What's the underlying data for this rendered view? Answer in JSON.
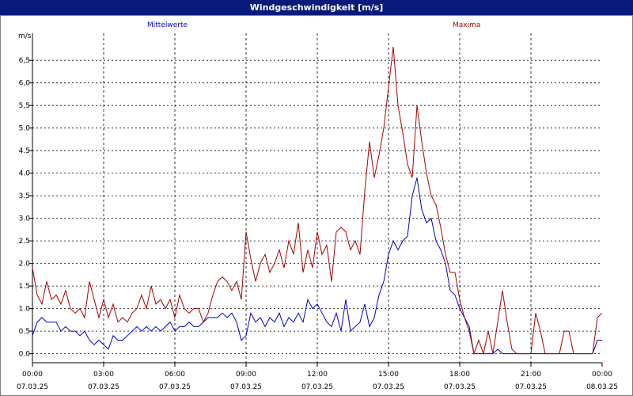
{
  "window": {
    "title": "Windgeschwindigkeit [m/s]"
  },
  "chart_data": {
    "type": "line",
    "title": "Windgeschwindigkeit [m/s]",
    "ylabel": "m/s",
    "ylim": [
      -0.2,
      7.1
    ],
    "y_ticks": [
      {
        "value": 0.0,
        "label": "0.0"
      },
      {
        "value": 0.5,
        "label": "0.5"
      },
      {
        "value": 1.0,
        "label": "1.0"
      },
      {
        "value": 1.5,
        "label": "1.5"
      },
      {
        "value": 2.0,
        "label": "2.0"
      },
      {
        "value": 2.5,
        "label": "2.5"
      },
      {
        "value": 3.0,
        "label": "3.0"
      },
      {
        "value": 3.5,
        "label": "3.5"
      },
      {
        "value": 4.0,
        "label": "4.0"
      },
      {
        "value": 4.5,
        "label": "4.5"
      },
      {
        "value": 5.0,
        "label": "5.0"
      },
      {
        "value": 5.5,
        "label": "5,5"
      },
      {
        "value": 6.0,
        "label": "6,0"
      },
      {
        "value": 6.5,
        "label": "6,5"
      }
    ],
    "x_range_hours": [
      0,
      24
    ],
    "x_ticks": [
      {
        "hour": 0,
        "time": "00:00",
        "date": "07.03.25"
      },
      {
        "hour": 3,
        "time": "03:00",
        "date": "07.03.25"
      },
      {
        "hour": 6,
        "time": "06:00",
        "date": "07.03.25"
      },
      {
        "hour": 9,
        "time": "09:00",
        "date": "07.03.25"
      },
      {
        "hour": 12,
        "time": "12:00",
        "date": "07.03.25"
      },
      {
        "hour": 15,
        "time": "15:00",
        "date": "07.03.25"
      },
      {
        "hour": 18,
        "time": "18:00",
        "date": "07.03.25"
      },
      {
        "hour": 21,
        "time": "21:00",
        "date": "07.03.25"
      },
      {
        "hour": 24,
        "time": "00:00",
        "date": "08.03.25"
      }
    ],
    "grid": true,
    "legend": [
      {
        "label": "Mittelwerte",
        "color": "#0000cc",
        "position": "top-left"
      },
      {
        "label": "Maxima",
        "color": "#aa0000",
        "position": "top-right"
      }
    ],
    "series": [
      {
        "name": "Mittelwerte",
        "color": "#0000cc",
        "points": [
          [
            0.0,
            0.4
          ],
          [
            0.2,
            0.7
          ],
          [
            0.4,
            0.8
          ],
          [
            0.6,
            0.7
          ],
          [
            0.8,
            0.7
          ],
          [
            1.0,
            0.7
          ],
          [
            1.2,
            0.5
          ],
          [
            1.4,
            0.6
          ],
          [
            1.6,
            0.5
          ],
          [
            1.8,
            0.5
          ],
          [
            2.0,
            0.4
          ],
          [
            2.2,
            0.5
          ],
          [
            2.4,
            0.3
          ],
          [
            2.6,
            0.2
          ],
          [
            2.8,
            0.3
          ],
          [
            3.0,
            0.2
          ],
          [
            3.2,
            0.1
          ],
          [
            3.4,
            0.4
          ],
          [
            3.6,
            0.3
          ],
          [
            3.8,
            0.3
          ],
          [
            4.0,
            0.4
          ],
          [
            4.2,
            0.5
          ],
          [
            4.4,
            0.6
          ],
          [
            4.6,
            0.5
          ],
          [
            4.8,
            0.6
          ],
          [
            5.0,
            0.5
          ],
          [
            5.2,
            0.6
          ],
          [
            5.4,
            0.5
          ],
          [
            5.6,
            0.6
          ],
          [
            5.8,
            0.7
          ],
          [
            6.0,
            0.5
          ],
          [
            6.2,
            0.6
          ],
          [
            6.4,
            0.6
          ],
          [
            6.6,
            0.7
          ],
          [
            6.8,
            0.6
          ],
          [
            7.0,
            0.6
          ],
          [
            7.2,
            0.7
          ],
          [
            7.4,
            0.8
          ],
          [
            7.6,
            0.8
          ],
          [
            7.8,
            0.8
          ],
          [
            8.0,
            0.9
          ],
          [
            8.2,
            0.8
          ],
          [
            8.4,
            0.9
          ],
          [
            8.6,
            0.7
          ],
          [
            8.8,
            0.3
          ],
          [
            9.0,
            0.4
          ],
          [
            9.2,
            0.9
          ],
          [
            9.4,
            0.7
          ],
          [
            9.6,
            0.8
          ],
          [
            9.8,
            0.6
          ],
          [
            10.0,
            0.8
          ],
          [
            10.2,
            0.7
          ],
          [
            10.4,
            0.9
          ],
          [
            10.6,
            0.6
          ],
          [
            10.8,
            0.8
          ],
          [
            11.0,
            0.7
          ],
          [
            11.2,
            0.9
          ],
          [
            11.4,
            0.7
          ],
          [
            11.6,
            1.2
          ],
          [
            11.8,
            1.0
          ],
          [
            12.0,
            1.1
          ],
          [
            12.2,
            0.9
          ],
          [
            12.4,
            0.7
          ],
          [
            12.6,
            0.6
          ],
          [
            12.8,
            0.9
          ],
          [
            13.0,
            0.5
          ],
          [
            13.2,
            1.2
          ],
          [
            13.4,
            0.5
          ],
          [
            13.6,
            0.6
          ],
          [
            13.8,
            0.7
          ],
          [
            14.0,
            1.1
          ],
          [
            14.2,
            0.6
          ],
          [
            14.4,
            0.8
          ],
          [
            14.6,
            1.3
          ],
          [
            14.8,
            1.6
          ],
          [
            15.0,
            2.2
          ],
          [
            15.2,
            2.5
          ],
          [
            15.4,
            2.3
          ],
          [
            15.6,
            2.5
          ],
          [
            15.8,
            2.6
          ],
          [
            16.0,
            3.5
          ],
          [
            16.2,
            3.9
          ],
          [
            16.4,
            3.2
          ],
          [
            16.6,
            2.9
          ],
          [
            16.8,
            3.0
          ],
          [
            17.0,
            2.5
          ],
          [
            17.2,
            2.3
          ],
          [
            17.4,
            2.0
          ],
          [
            17.6,
            1.4
          ],
          [
            17.8,
            1.3
          ],
          [
            18.0,
            1.0
          ],
          [
            18.2,
            0.8
          ],
          [
            18.4,
            0.6
          ],
          [
            18.6,
            0.0
          ],
          [
            18.8,
            0.0
          ],
          [
            19.0,
            0.0
          ],
          [
            19.2,
            0.0
          ],
          [
            19.4,
            0.0
          ],
          [
            19.6,
            0.1
          ],
          [
            19.8,
            0.0
          ],
          [
            20.0,
            0.0
          ],
          [
            20.2,
            0.0
          ],
          [
            20.4,
            0.0
          ],
          [
            20.6,
            0.0
          ],
          [
            20.8,
            0.0
          ],
          [
            21.0,
            0.0
          ],
          [
            21.2,
            0.0
          ],
          [
            21.4,
            0.0
          ],
          [
            21.6,
            0.0
          ],
          [
            21.8,
            0.0
          ],
          [
            22.0,
            0.0
          ],
          [
            22.2,
            0.0
          ],
          [
            22.4,
            0.0
          ],
          [
            22.6,
            0.0
          ],
          [
            22.8,
            0.0
          ],
          [
            23.0,
            0.0
          ],
          [
            23.2,
            0.0
          ],
          [
            23.4,
            0.0
          ],
          [
            23.6,
            0.0
          ],
          [
            23.8,
            0.3
          ],
          [
            24.0,
            0.3
          ]
        ]
      },
      {
        "name": "Maxima",
        "color": "#aa0000",
        "points": [
          [
            0.0,
            1.9
          ],
          [
            0.2,
            1.3
          ],
          [
            0.4,
            1.1
          ],
          [
            0.6,
            1.6
          ],
          [
            0.8,
            1.2
          ],
          [
            1.0,
            1.3
          ],
          [
            1.2,
            1.1
          ],
          [
            1.4,
            1.4
          ],
          [
            1.6,
            1.0
          ],
          [
            1.8,
            0.9
          ],
          [
            2.0,
            1.0
          ],
          [
            2.2,
            0.8
          ],
          [
            2.4,
            1.6
          ],
          [
            2.6,
            1.2
          ],
          [
            2.8,
            0.8
          ],
          [
            3.0,
            1.2
          ],
          [
            3.2,
            0.8
          ],
          [
            3.4,
            1.1
          ],
          [
            3.6,
            0.7
          ],
          [
            3.8,
            0.8
          ],
          [
            4.0,
            0.7
          ],
          [
            4.2,
            0.9
          ],
          [
            4.4,
            1.0
          ],
          [
            4.6,
            1.3
          ],
          [
            4.8,
            1.0
          ],
          [
            5.0,
            1.5
          ],
          [
            5.2,
            1.1
          ],
          [
            5.4,
            1.2
          ],
          [
            5.6,
            1.0
          ],
          [
            5.8,
            1.2
          ],
          [
            6.0,
            0.8
          ],
          [
            6.2,
            1.3
          ],
          [
            6.4,
            1.0
          ],
          [
            6.6,
            0.9
          ],
          [
            6.8,
            1.0
          ],
          [
            7.0,
            1.0
          ],
          [
            7.2,
            0.7
          ],
          [
            7.4,
            0.9
          ],
          [
            7.6,
            1.3
          ],
          [
            7.8,
            1.6
          ],
          [
            8.0,
            1.7
          ],
          [
            8.2,
            1.6
          ],
          [
            8.4,
            1.4
          ],
          [
            8.6,
            1.6
          ],
          [
            8.8,
            1.2
          ],
          [
            9.0,
            2.7
          ],
          [
            9.2,
            2.1
          ],
          [
            9.4,
            1.6
          ],
          [
            9.6,
            2.0
          ],
          [
            9.8,
            2.2
          ],
          [
            10.0,
            1.8
          ],
          [
            10.2,
            2.0
          ],
          [
            10.4,
            2.3
          ],
          [
            10.6,
            1.9
          ],
          [
            10.8,
            2.5
          ],
          [
            11.0,
            2.2
          ],
          [
            11.2,
            2.9
          ],
          [
            11.4,
            1.8
          ],
          [
            11.6,
            2.3
          ],
          [
            11.8,
            1.9
          ],
          [
            12.0,
            2.7
          ],
          [
            12.2,
            2.2
          ],
          [
            12.4,
            2.4
          ],
          [
            12.6,
            1.6
          ],
          [
            12.8,
            2.7
          ],
          [
            13.0,
            2.8
          ],
          [
            13.2,
            2.7
          ],
          [
            13.4,
            2.3
          ],
          [
            13.6,
            2.5
          ],
          [
            13.8,
            2.2
          ],
          [
            14.0,
            3.6
          ],
          [
            14.2,
            4.7
          ],
          [
            14.4,
            3.9
          ],
          [
            14.6,
            4.4
          ],
          [
            14.8,
            5.0
          ],
          [
            15.0,
            5.9
          ],
          [
            15.2,
            6.8
          ],
          [
            15.4,
            5.5
          ],
          [
            15.6,
            4.9
          ],
          [
            15.8,
            4.2
          ],
          [
            16.0,
            3.9
          ],
          [
            16.2,
            5.5
          ],
          [
            16.4,
            4.7
          ],
          [
            16.6,
            4.0
          ],
          [
            16.8,
            3.5
          ],
          [
            17.0,
            3.3
          ],
          [
            17.2,
            2.8
          ],
          [
            17.4,
            2.2
          ],
          [
            17.6,
            1.8
          ],
          [
            17.8,
            1.8
          ],
          [
            18.0,
            1.2
          ],
          [
            18.2,
            0.8
          ],
          [
            18.4,
            0.5
          ],
          [
            18.6,
            0.0
          ],
          [
            18.8,
            0.3
          ],
          [
            19.0,
            0.0
          ],
          [
            19.2,
            0.5
          ],
          [
            19.4,
            0.0
          ],
          [
            19.6,
            0.7
          ],
          [
            19.8,
            1.4
          ],
          [
            20.0,
            0.7
          ],
          [
            20.2,
            0.1
          ],
          [
            20.4,
            0.0
          ],
          [
            20.6,
            0.0
          ],
          [
            20.8,
            0.0
          ],
          [
            21.0,
            0.0
          ],
          [
            21.2,
            0.9
          ],
          [
            21.4,
            0.5
          ],
          [
            21.6,
            0.0
          ],
          [
            21.8,
            0.0
          ],
          [
            22.0,
            0.0
          ],
          [
            22.2,
            0.0
          ],
          [
            22.4,
            0.5
          ],
          [
            22.6,
            0.5
          ],
          [
            22.8,
            0.0
          ],
          [
            23.0,
            0.0
          ],
          [
            23.2,
            0.0
          ],
          [
            23.4,
            0.0
          ],
          [
            23.6,
            0.0
          ],
          [
            23.8,
            0.8
          ],
          [
            24.0,
            0.9
          ]
        ]
      }
    ]
  }
}
